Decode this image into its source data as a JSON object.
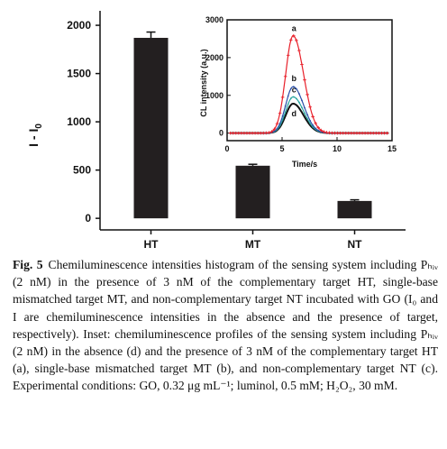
{
  "chart_data": [
    {
      "type": "bar",
      "categories": [
        "HT",
        "MT",
        "NT"
      ],
      "values": [
        1870,
        545,
        180
      ],
      "errors": [
        60,
        15,
        12
      ],
      "ylabel": "I - I",
      "ylabel_sub": "0",
      "ylim": [
        -120,
        2150
      ],
      "yticks": [
        0,
        500,
        1000,
        1500,
        2000
      ],
      "bar_color": "#231f20"
    },
    {
      "type": "line",
      "xlabel": "Time/s",
      "ylabel": "CL intensity (a.u.)",
      "xlim": [
        0,
        15
      ],
      "ylim": [
        -200,
        3000
      ],
      "xticks": [
        0,
        5,
        10,
        15
      ],
      "yticks": [
        0,
        1000,
        2000,
        3000
      ],
      "series": [
        {
          "name": "a",
          "color": "#e8202a",
          "marker": "plus",
          "peak_x": 6.0,
          "peak_y": 2580
        },
        {
          "name": "b",
          "color": "#2a4fa8",
          "marker": "dot",
          "peak_x": 6.0,
          "peak_y": 1230
        },
        {
          "name": "c",
          "color": "#2aa6a0",
          "marker": "dot",
          "peak_x": 6.0,
          "peak_y": 960
        },
        {
          "name": "d",
          "color": "#111111",
          "marker": "none",
          "peak_x": 6.0,
          "peak_y": 780
        }
      ]
    }
  ],
  "caption": {
    "label": "Fig. 5",
    "text": "Chemiluminescence intensities histogram of the sensing system including Pₕᵢᵥ (2 nM) in the presence of 3 nM of the complementary target HT, single-base mismatched target MT, and non-complementary target NT incubated with GO (I₀ and I are chemiluminescence intensities in the absence and the presence of target, respectively). Inset: chemiluminescence profiles of the sensing system including Pₕᵢᵥ (2 nM) in the absence (d) and the presence of 3 nM of the complementary target HT (a), single-base mismatched target MT (b), and non-complementary target NT (c). Experimental conditions: GO, 0.32 μg mL⁻¹; luminol, 0.5 mM; H₂O₂, 30 mM."
  }
}
